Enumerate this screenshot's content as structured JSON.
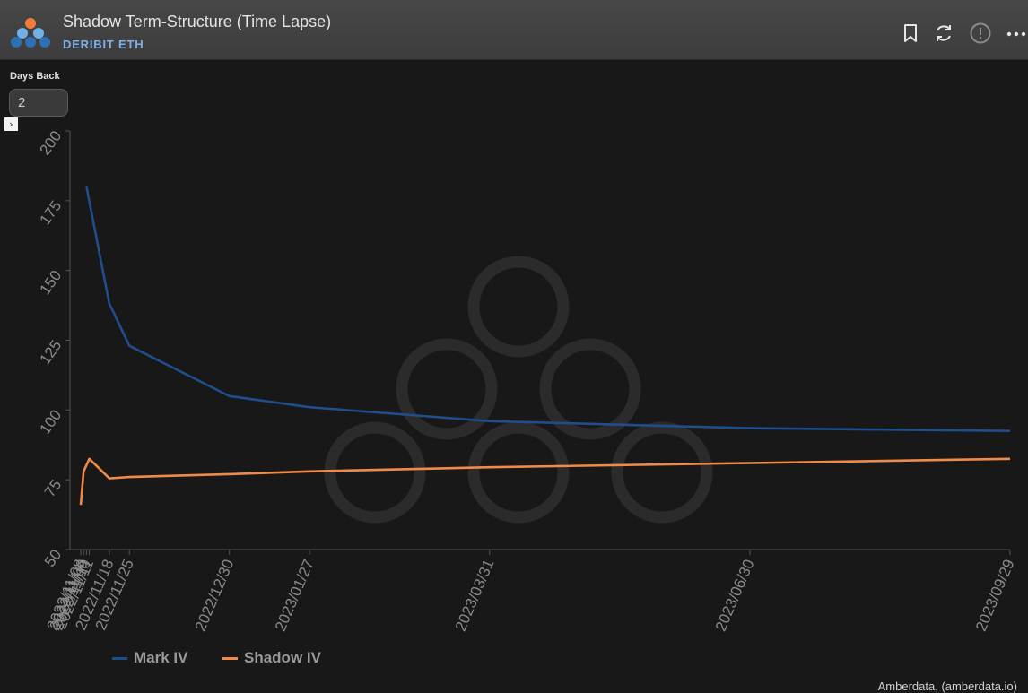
{
  "header": {
    "title": "Shadow Term-Structure (Time Lapse)",
    "subtitle": "DERIBIT ETH",
    "icons": [
      "bookmark-icon",
      "refresh-icon",
      "info-icon",
      "more-icon"
    ]
  },
  "controls": {
    "days_back_label": "Days Back",
    "days_back_value": "2",
    "expand_glyph": "›"
  },
  "colors": {
    "mark_iv": "#1f4e8c",
    "shadow_iv": "#f08a4b",
    "axis": "#555555",
    "tick_text": "#8a8a8a"
  },
  "chart_data": {
    "type": "line",
    "title": "",
    "xlabel": "",
    "ylabel": "",
    "ylim": [
      50,
      200
    ],
    "y_ticks": [
      50,
      75,
      100,
      125,
      150,
      175,
      200
    ],
    "x_ticks": [
      "2022/11/08",
      "2022/11/09",
      "2022/11/10",
      "2022/11/11",
      "2022/11/18",
      "2022/11/25",
      "2022/12/30",
      "2023/01/27",
      "2023/03/31",
      "2023/06/30",
      "2023/09/29"
    ],
    "grid": false,
    "legend_position": "bottom-left",
    "series": [
      {
        "name": "Mark IV",
        "points": [
          {
            "x": "2022/11/10",
            "y": 180
          },
          {
            "x": "2022/11/18",
            "y": 138
          },
          {
            "x": "2022/11/19",
            "y": 136
          },
          {
            "x": "2022/11/25",
            "y": 123
          },
          {
            "x": "2022/12/30",
            "y": 105
          },
          {
            "x": "2023/01/27",
            "y": 101
          },
          {
            "x": "2023/03/31",
            "y": 96
          },
          {
            "x": "2023/06/30",
            "y": 93.5
          },
          {
            "x": "2023/09/29",
            "y": 92.5
          }
        ]
      },
      {
        "name": "Shadow IV",
        "points": [
          {
            "x": "2022/11/08",
            "y": 66
          },
          {
            "x": "2022/11/09",
            "y": 78
          },
          {
            "x": "2022/11/11",
            "y": 82.5
          },
          {
            "x": "2022/11/18",
            "y": 75.5
          },
          {
            "x": "2022/11/25",
            "y": 76
          },
          {
            "x": "2022/12/30",
            "y": 77
          },
          {
            "x": "2023/01/27",
            "y": 78
          },
          {
            "x": "2023/03/31",
            "y": 79.5
          },
          {
            "x": "2023/06/30",
            "y": 81
          },
          {
            "x": "2023/09/29",
            "y": 82.5
          }
        ]
      }
    ]
  },
  "legend": {
    "mark_label": "Mark IV",
    "shadow_label": "Shadow IV"
  },
  "footer": {
    "credit": "Amberdata, (amberdata.io)"
  }
}
